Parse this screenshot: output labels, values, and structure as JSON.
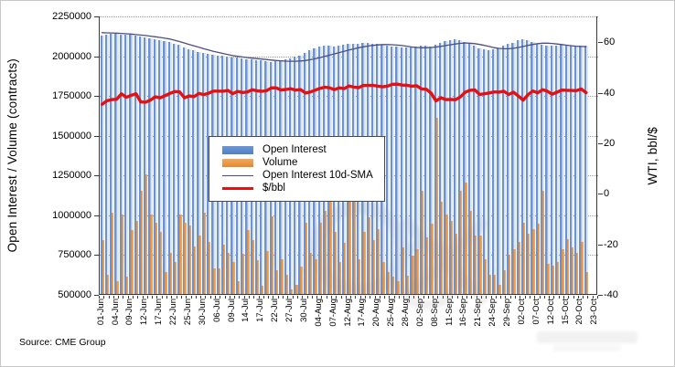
{
  "source_note": "Source: CME Group",
  "chart_data": {
    "type": "bar",
    "title": "",
    "left_axis": {
      "title": "Open Interest / Volume (contracts)",
      "min": 500000,
      "max": 2250000,
      "step": 250000
    },
    "right_axis": {
      "title": "WTI, bbl/$",
      "min": -40,
      "max": 60,
      "step": 20
    },
    "grid": "dotted horizontal at left-axis ticks",
    "legend_position": "inside upper-left area",
    "total_slots": 103,
    "label_every": 3,
    "x_labels": [
      "01-Jun",
      "04-Jun",
      "09-Jun",
      "12-Jun",
      "17-Jun",
      "22-Jun",
      "25-Jun",
      "30-Jun",
      "06-Jul",
      "09-Jul",
      "14-Jul",
      "17-Jul",
      "22-Jul",
      "27-Jul",
      "30-Jul",
      "04-Aug",
      "07-Aug",
      "12-Aug",
      "17-Aug",
      "20-Aug",
      "25-Aug",
      "28-Aug",
      "02-Sep",
      "08-Sep",
      "11-Sep",
      "16-Sep",
      "21-Sep",
      "24-Sep",
      "29-Sep",
      "02-Oct",
      "07-Oct",
      "12-Oct",
      "15-Oct",
      "20-Oct",
      "23-Oct"
    ],
    "series": [
      {
        "name": "Open Interest",
        "type": "bar",
        "axis": "left",
        "color": "#6b92d3",
        "values": [
          2125000,
          2130000,
          2135000,
          2135000,
          2130000,
          2130000,
          2128000,
          2125000,
          2120000,
          2110000,
          2105000,
          2100000,
          2095000,
          2090000,
          2085000,
          2075000,
          2065000,
          2050000,
          2040000,
          2030000,
          2020000,
          2015000,
          2010000,
          2005000,
          2000000,
          1995000,
          1990000,
          1985000,
          1985000,
          1980000,
          1975000,
          1975000,
          1970000,
          1970000,
          1965000,
          1960000,
          1965000,
          1970000,
          1975000,
          1980000,
          1990000,
          2000000,
          2015000,
          2030000,
          2045000,
          2055000,
          2060000,
          2060000,
          2055000,
          2060000,
          2065000,
          2070000,
          2075000,
          2075000,
          2080000,
          2080000,
          2075000,
          2070000,
          2065000,
          2060000,
          2055000,
          2055000,
          2050000,
          2050000,
          2050000,
          2055000,
          2060000,
          2060000,
          2055000,
          2065000,
          2080000,
          2090000,
          2095000,
          2100000,
          2095000,
          2085000,
          2070000,
          2060000,
          2045000,
          2035000,
          2030000,
          2035000,
          2045000,
          2060000,
          2070000,
          2080000,
          2095000,
          2100000,
          2095000,
          2085000,
          2075000,
          2065000,
          2060000,
          2060000,
          2060000,
          2065000,
          2065000,
          2060000,
          2060000,
          2062000,
          2058000
        ]
      },
      {
        "name": "Volume",
        "type": "bar",
        "axis": "left",
        "color": "#ec9a46",
        "values": [
          840000,
          620000,
          1010000,
          580000,
          1000000,
          610000,
          900000,
          960000,
          1150000,
          1250000,
          1000000,
          950000,
          890000,
          640000,
          760000,
          700000,
          1000000,
          950000,
          930000,
          800000,
          870000,
          1010000,
          830000,
          660000,
          660000,
          810000,
          760000,
          700000,
          580000,
          750000,
          900000,
          840000,
          710000,
          550000,
          770000,
          990000,
          650000,
          720000,
          620000,
          530000,
          560000,
          670000,
          950000,
          760000,
          720000,
          950000,
          1020000,
          1140000,
          890000,
          700000,
          820000,
          1100000,
          1150000,
          720000,
          890000,
          980000,
          840000,
          910000,
          700000,
          640000,
          610000,
          580000,
          790000,
          615000,
          740000,
          780000,
          1150000,
          855000,
          940000,
          1610000,
          1080000,
          1000000,
          960000,
          880000,
          1150000,
          1200000,
          1020000,
          870000,
          870000,
          720000,
          620000,
          620000,
          560000,
          650000,
          745000,
          780000,
          830000,
          950000,
          880000,
          910000,
          940000,
          1150000,
          690000,
          680000,
          700000,
          780000,
          845000,
          790000,
          760000,
          830000,
          640000
        ]
      },
      {
        "name": "Open Interest 10d-SMA",
        "type": "line",
        "axis": "left",
        "color": "#4d4d85",
        "values": [
          2148000,
          2147000,
          2146000,
          2145000,
          2143000,
          2141000,
          2139000,
          2136000,
          2133000,
          2130000,
          2126000,
          2122000,
          2118000,
          2113000,
          2108000,
          2100000,
          2092000,
          2083000,
          2074000,
          2065000,
          2056000,
          2047000,
          2039000,
          2031000,
          2024000,
          2017000,
          2010000,
          2004000,
          1999000,
          1995000,
          1991000,
          1988000,
          1985000,
          1982000,
          1979000,
          1976000,
          1973000,
          1971000,
          1969000,
          1968000,
          1968000,
          1970000,
          1973000,
          1978000,
          1984000,
          1991000,
          1999000,
          2007000,
          2015000,
          2023000,
          2031000,
          2039000,
          2046000,
          2053000,
          2059000,
          2064000,
          2068000,
          2071000,
          2073000,
          2073000,
          2072000,
          2070000,
          2067000,
          2063000,
          2058000,
          2055000,
          2053000,
          2053000,
          2055000,
          2058000,
          2062000,
          2067000,
          2072000,
          2077000,
          2081000,
          2083000,
          2082000,
          2079000,
          2074000,
          2068000,
          2061000,
          2054000,
          2049000,
          2047000,
          2047000,
          2050000,
          2055000,
          2061000,
          2068000,
          2074000,
          2079000,
          2082000,
          2082000,
          2080000,
          2077000,
          2073000,
          2069000,
          2066000,
          2063000,
          2061000,
          2060000
        ]
      },
      {
        "name": "$/bbl",
        "type": "line",
        "axis": "right",
        "color": "#e51010",
        "values": [
          35.44,
          36.81,
          37.29,
          37.41,
          39.55,
          38.19,
          38.94,
          39.6,
          36.34,
          36.26,
          37.12,
          38.38,
          37.96,
          38.84,
          39.75,
          40.46,
          40.37,
          38.01,
          38.72,
          38.49,
          39.7,
          39.27,
          39.82,
          40.65,
          40.63,
          40.62,
          40.9,
          39.62,
          40.55,
          40.1,
          40.29,
          41.2,
          40.75,
          40.59,
          40.81,
          41.96,
          41.9,
          41.07,
          41.29,
          41.6,
          41.04,
          41.27,
          39.92,
          40.27,
          41.01,
          41.7,
          42.19,
          41.95,
          41.22,
          41.94,
          41.61,
          42.67,
          42.24,
          42.01,
          42.89,
          42.89,
          42.93,
          42.58,
          42.34,
          42.62,
          43.35,
          43.39,
          43.04,
          42.97,
          42.61,
          42.76,
          41.51,
          41.37,
          39.77,
          36.76,
          38.05,
          37.3,
          37.33,
          37.26,
          38.28,
          40.16,
          40.97,
          41.11,
          39.31,
          39.6,
          39.93,
          40.31,
          40.25,
          40.6,
          39.29,
          40.22,
          38.72,
          37.05,
          39.22,
          40.67,
          39.95,
          41.19,
          40.6,
          39.43,
          40.2,
          41.04,
          40.96,
          40.88,
          40.83,
          41.46,
          40.03
        ]
      }
    ]
  }
}
